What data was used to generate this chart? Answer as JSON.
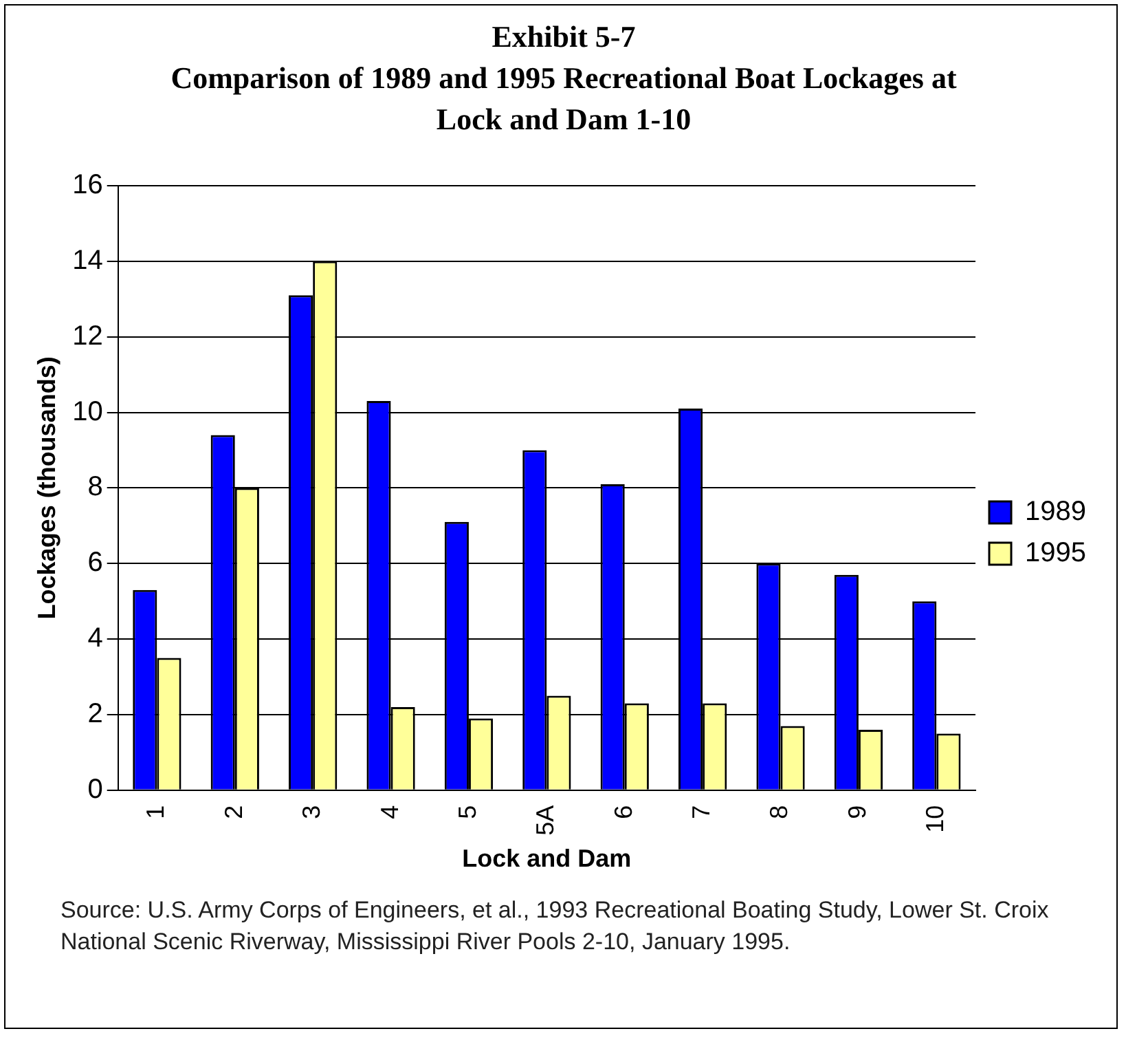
{
  "chart_data": {
    "type": "bar",
    "title": "Exhibit 5-7",
    "subtitle": "Comparison of 1989 and 1995 Recreational Boat Lockages at Lock and Dam 1-10",
    "xlabel": "Lock and Dam",
    "ylabel": "Lockages (thousands)",
    "categories": [
      "1",
      "2",
      "3",
      "4",
      "5",
      "5A",
      "6",
      "7",
      "8",
      "9",
      "10"
    ],
    "series": [
      {
        "name": "1989",
        "color": "#0000ff",
        "values": [
          5.3,
          9.4,
          13.1,
          10.3,
          7.1,
          9.0,
          8.1,
          10.1,
          6.0,
          5.7,
          5.0
        ]
      },
      {
        "name": "1995",
        "color": "#ffff99",
        "values": [
          3.5,
          8.0,
          14.0,
          2.2,
          1.9,
          2.5,
          2.3,
          2.3,
          1.7,
          1.6,
          1.5
        ]
      }
    ],
    "ylim": [
      0,
      16
    ],
    "yticks": [
      0,
      2,
      4,
      6,
      8,
      10,
      12,
      14,
      16
    ],
    "grid": "y",
    "legend": "right",
    "annotations": [
      "Source: U.S. Army Corps of Engineers, et al., 1993 Recreational Boating Study, Lower St. Croix National Scenic Riverway, Mississippi River Pools 2-10, January 1995."
    ]
  }
}
